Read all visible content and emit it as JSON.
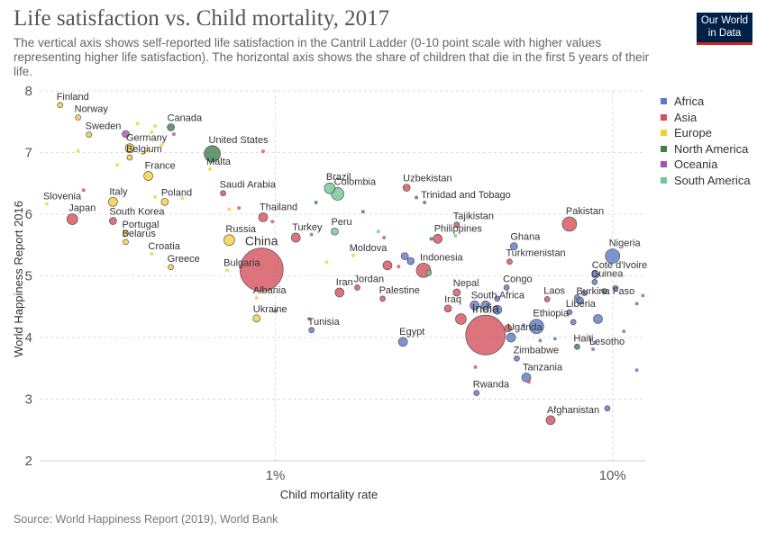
{
  "title": "Life satisfaction vs. Child mortality, 2017",
  "subtitle": "The vertical axis shows self-reported life satisfaction in the Cantril Ladder (0-10 point scale with higher values representing higher life satisfaction). The horizontal axis shows the share of children that die in the first 5 years of their life.",
  "logo": {
    "line1": "Our World",
    "line2": "in Data"
  },
  "source": "Source: World Happiness Report (2019), World Bank",
  "colors": {
    "Africa": "#5b7bc6",
    "Asia": "#d4505b",
    "Europe": "#f2cf3a",
    "North America": "#3f7f4c",
    "Oceania": "#a651b6",
    "South America": "#6fc98f",
    "grid": "#dddddd",
    "text": "#333333"
  },
  "legend": [
    "Africa",
    "Asia",
    "Europe",
    "North America",
    "Oceania",
    "South America"
  ],
  "chart_data": {
    "type": "scatter",
    "xlabel": "Child mortality rate",
    "ylabel": "World Happiness Report 2016",
    "x_scale": "log",
    "xlim": [
      0.2,
      12.5
    ],
    "ylim": [
      2,
      8
    ],
    "x_ticks": [
      {
        "value": 1,
        "label": "1%"
      },
      {
        "value": 10,
        "label": "10%"
      }
    ],
    "y_ticks": [
      2,
      3,
      4,
      5,
      6,
      7,
      8
    ],
    "grid": true,
    "legend_position": "right",
    "points": [
      {
        "label": "Finland",
        "x": 0.23,
        "y": 7.77,
        "region": "Europe",
        "size": 3
      },
      {
        "label": "Norway",
        "x": 0.26,
        "y": 7.57,
        "region": "Europe",
        "size": 3
      },
      {
        "label": "Sweden",
        "x": 0.28,
        "y": 7.29,
        "region": "Europe",
        "size": 3
      },
      {
        "label": "Germany",
        "x": 0.37,
        "y": 7.07,
        "region": "Europe",
        "size": 5
      },
      {
        "label": "Belgium",
        "x": 0.37,
        "y": 6.92,
        "region": "Europe",
        "size": 3
      },
      {
        "label": "Canada",
        "x": 0.49,
        "y": 7.41,
        "region": "North America",
        "size": 4
      },
      {
        "label": "United States",
        "x": 0.65,
        "y": 6.98,
        "region": "North America",
        "size": 9
      },
      {
        "label": "France",
        "x": 0.42,
        "y": 6.62,
        "region": "Europe",
        "size": 5
      },
      {
        "label": "Malta",
        "x": 0.64,
        "y": 6.73,
        "region": "Europe",
        "size": 2
      },
      {
        "label": "Slovenia",
        "x": 0.21,
        "y": 6.17,
        "region": "Europe",
        "size": 2
      },
      {
        "label": "Italy",
        "x": 0.33,
        "y": 6.2,
        "region": "Europe",
        "size": 5
      },
      {
        "label": "Poland",
        "x": 0.47,
        "y": 6.2,
        "region": "Europe",
        "size": 4
      },
      {
        "label": "Saudi Arabia",
        "x": 0.7,
        "y": 6.34,
        "region": "Asia",
        "size": 3
      },
      {
        "label": "Japan",
        "x": 0.25,
        "y": 5.92,
        "region": "Asia",
        "size": 6
      },
      {
        "label": "South Korea",
        "x": 0.33,
        "y": 5.89,
        "region": "Asia",
        "size": 4
      },
      {
        "label": "Portugal",
        "x": 0.36,
        "y": 5.69,
        "region": "Europe",
        "size": 3
      },
      {
        "label": "Belarus",
        "x": 0.36,
        "y": 5.55,
        "region": "Europe",
        "size": 3
      },
      {
        "label": "Russia",
        "x": 0.73,
        "y": 5.58,
        "region": "Europe",
        "size": 6
      },
      {
        "label": "Croatia",
        "x": 0.43,
        "y": 5.36,
        "region": "Europe",
        "size": 2
      },
      {
        "label": "Greece",
        "x": 0.49,
        "y": 5.14,
        "region": "Europe",
        "size": 3
      },
      {
        "label": "Bulgaria",
        "x": 0.72,
        "y": 5.09,
        "region": "Europe",
        "size": 2
      },
      {
        "label": "China",
        "x": 0.91,
        "y": 5.1,
        "region": "Asia",
        "size": 24
      },
      {
        "label": "Thailand",
        "x": 0.92,
        "y": 5.95,
        "region": "Asia",
        "size": 5
      },
      {
        "label": "Albania",
        "x": 0.88,
        "y": 4.64,
        "region": "Europe",
        "size": 2
      },
      {
        "label": "Ukraine",
        "x": 0.88,
        "y": 4.31,
        "region": "Europe",
        "size": 4
      },
      {
        "label": "Tunisia",
        "x": 1.28,
        "y": 4.12,
        "region": "Africa",
        "size": 3
      },
      {
        "label": "Turkey",
        "x": 1.15,
        "y": 5.62,
        "region": "Asia",
        "size": 5
      },
      {
        "label": "Brazil",
        "x": 1.45,
        "y": 6.42,
        "region": "South America",
        "size": 6
      },
      {
        "label": "Colombia",
        "x": 1.53,
        "y": 6.33,
        "region": "South America",
        "size": 7
      },
      {
        "label": "Peru",
        "x": 1.5,
        "y": 5.72,
        "region": "South America",
        "size": 4
      },
      {
        "label": "Moldova",
        "x": 1.7,
        "y": 5.33,
        "region": "Europe",
        "size": 2
      },
      {
        "label": "Iran",
        "x": 1.55,
        "y": 4.73,
        "region": "Asia",
        "size": 5
      },
      {
        "label": "Jordan",
        "x": 1.75,
        "y": 4.81,
        "region": "Asia",
        "size": 3
      },
      {
        "label": "Palestine",
        "x": 2.08,
        "y": 4.63,
        "region": "Asia",
        "size": 3
      },
      {
        "label": "Egypt",
        "x": 2.39,
        "y": 3.93,
        "region": "Africa",
        "size": 5
      },
      {
        "label": "Uzbekistan",
        "x": 2.45,
        "y": 6.43,
        "region": "Asia",
        "size": 4
      },
      {
        "label": "Trinidad and Tobago",
        "x": 2.77,
        "y": 6.19,
        "region": "North America",
        "size": 2
      },
      {
        "label": "Philippines",
        "x": 3.03,
        "y": 5.6,
        "region": "Asia",
        "size": 5
      },
      {
        "label": "Tajikistan",
        "x": 3.45,
        "y": 5.83,
        "region": "Asia",
        "size": 3
      },
      {
        "label": "Indonesia",
        "x": 2.75,
        "y": 5.09,
        "region": "Asia",
        "size": 8
      },
      {
        "label": "Nepal",
        "x": 3.45,
        "y": 4.73,
        "region": "Asia",
        "size": 4
      },
      {
        "label": "Iraq",
        "x": 3.25,
        "y": 4.47,
        "region": "Asia",
        "size": 4
      },
      {
        "label": "South Africa",
        "x": 3.9,
        "y": 4.52,
        "region": "Africa",
        "size": 5
      },
      {
        "label": "India",
        "x": 4.2,
        "y": 4.04,
        "region": "Asia",
        "size": 22
      },
      {
        "label": "Ghana",
        "x": 5.1,
        "y": 5.48,
        "region": "Africa",
        "size": 4
      },
      {
        "label": "Turkmenistan",
        "x": 4.95,
        "y": 5.23,
        "region": "Asia",
        "size": 3
      },
      {
        "label": "Congo",
        "x": 4.85,
        "y": 4.81,
        "region": "Africa",
        "size": 3
      },
      {
        "label": "Rwanda",
        "x": 3.95,
        "y": 3.1,
        "region": "Africa",
        "size": 3
      },
      {
        "label": "Uganda",
        "x": 5.0,
        "y": 4.0,
        "region": "Africa",
        "size": 5
      },
      {
        "label": "Ethiopia",
        "x": 5.95,
        "y": 4.18,
        "region": "Africa",
        "size": 8
      },
      {
        "label": "Zimbabwe",
        "x": 5.2,
        "y": 3.66,
        "region": "Africa",
        "size": 3
      },
      {
        "label": "Tanzania",
        "x": 5.55,
        "y": 3.35,
        "region": "Africa",
        "size": 5
      },
      {
        "label": "Laos",
        "x": 6.4,
        "y": 4.62,
        "region": "Asia",
        "size": 3
      },
      {
        "label": "Pakistan",
        "x": 7.45,
        "y": 5.84,
        "region": "Asia",
        "size": 8
      },
      {
        "label": "Cote d'Ivoire",
        "x": 8.9,
        "y": 5.02,
        "region": "Africa",
        "size": 4
      },
      {
        "label": "Guinea",
        "x": 8.85,
        "y": 4.9,
        "region": "Africa",
        "size": 3
      },
      {
        "label": "Burkina Faso",
        "x": 8.0,
        "y": 4.6,
        "region": "Africa",
        "size": 4
      },
      {
        "label": "Liberia",
        "x": 7.45,
        "y": 4.41,
        "region": "Africa",
        "size": 3
      },
      {
        "label": "Haiti",
        "x": 7.85,
        "y": 3.85,
        "region": "North America",
        "size": 3
      },
      {
        "label": "Lesotho",
        "x": 8.75,
        "y": 3.81,
        "region": "Africa",
        "size": 2
      },
      {
        "label": "Nigeria",
        "x": 10.0,
        "y": 5.32,
        "region": "Africa",
        "size": 8
      },
      {
        "label": "Afghanistan",
        "x": 6.55,
        "y": 2.66,
        "region": "Asia",
        "size": 5
      },
      {
        "label": "",
        "x": 0.44,
        "y": 7.43,
        "region": "Europe",
        "size": 2
      },
      {
        "label": "",
        "x": 0.39,
        "y": 7.47,
        "region": "Europe",
        "size": 2
      },
      {
        "label": "",
        "x": 0.43,
        "y": 7.33,
        "region": "Europe",
        "size": 2
      },
      {
        "label": "",
        "x": 0.36,
        "y": 7.3,
        "region": "Oceania",
        "size": 4
      },
      {
        "label": "",
        "x": 0.5,
        "y": 7.3,
        "region": "Oceania",
        "size": 2
      },
      {
        "label": "",
        "x": 0.46,
        "y": 7.12,
        "region": "Europe",
        "size": 2
      },
      {
        "label": "",
        "x": 0.42,
        "y": 7.05,
        "region": "Europe",
        "size": 2
      },
      {
        "label": "",
        "x": 0.41,
        "y": 7.01,
        "region": "Europe",
        "size": 2
      },
      {
        "label": "",
        "x": 0.26,
        "y": 7.03,
        "region": "Europe",
        "size": 2
      },
      {
        "label": "",
        "x": 0.34,
        "y": 6.8,
        "region": "Europe",
        "size": 2
      },
      {
        "label": "",
        "x": 0.92,
        "y": 7.02,
        "region": "Asia",
        "size": 2
      },
      {
        "label": "",
        "x": 0.27,
        "y": 6.39,
        "region": "Asia",
        "size": 2
      },
      {
        "label": "",
        "x": 0.44,
        "y": 6.28,
        "region": "Europe",
        "size": 2
      },
      {
        "label": "",
        "x": 0.53,
        "y": 6.26,
        "region": "Europe",
        "size": 2
      },
      {
        "label": "",
        "x": 0.73,
        "y": 6.08,
        "region": "Europe",
        "size": 2
      },
      {
        "label": "",
        "x": 0.78,
        "y": 6.1,
        "region": "Asia",
        "size": 2
      },
      {
        "label": "",
        "x": 0.98,
        "y": 5.88,
        "region": "Asia",
        "size": 2
      },
      {
        "label": "",
        "x": 1.32,
        "y": 6.19,
        "region": "North America",
        "size": 2
      },
      {
        "label": "",
        "x": 1.82,
        "y": 6.04,
        "region": "North America",
        "size": 2
      },
      {
        "label": "",
        "x": 1.28,
        "y": 5.67,
        "region": "Africa",
        "size": 2
      },
      {
        "label": "",
        "x": 1.42,
        "y": 5.22,
        "region": "Europe",
        "size": 2
      },
      {
        "label": "",
        "x": 2.15,
        "y": 5.17,
        "region": "Asia",
        "size": 5
      },
      {
        "label": "",
        "x": 2.32,
        "y": 5.15,
        "region": "Asia",
        "size": 2
      },
      {
        "label": "",
        "x": 2.42,
        "y": 5.32,
        "region": "Africa",
        "size": 4
      },
      {
        "label": "",
        "x": 2.52,
        "y": 5.24,
        "region": "Africa",
        "size": 4
      },
      {
        "label": "",
        "x": 2.85,
        "y": 5.05,
        "region": "South America",
        "size": 3
      },
      {
        "label": "",
        "x": 2.02,
        "y": 5.72,
        "region": "South America",
        "size": 2
      },
      {
        "label": "",
        "x": 2.62,
        "y": 6.27,
        "region": "North America",
        "size": 2
      },
      {
        "label": "",
        "x": 2.9,
        "y": 5.6,
        "region": "North America",
        "size": 2
      },
      {
        "label": "",
        "x": 3.42,
        "y": 5.65,
        "region": "South America",
        "size": 2
      },
      {
        "label": "",
        "x": 2.1,
        "y": 5.62,
        "region": "Asia",
        "size": 2
      },
      {
        "label": "",
        "x": 1.0,
        "y": 4.43,
        "region": "Asia",
        "size": 2
      },
      {
        "label": "",
        "x": 1.26,
        "y": 4.3,
        "region": "Asia",
        "size": 2
      },
      {
        "label": "",
        "x": 3.55,
        "y": 4.3,
        "region": "Asia",
        "size": 6
      },
      {
        "label": "",
        "x": 4.2,
        "y": 4.52,
        "region": "Africa",
        "size": 5
      },
      {
        "label": "",
        "x": 4.55,
        "y": 4.45,
        "region": "Africa",
        "size": 5
      },
      {
        "label": "",
        "x": 4.55,
        "y": 4.63,
        "region": "Africa",
        "size": 3
      },
      {
        "label": "",
        "x": 4.9,
        "y": 4.15,
        "region": "Asia",
        "size": 4
      },
      {
        "label": "",
        "x": 5.45,
        "y": 4.2,
        "region": "Africa",
        "size": 2
      },
      {
        "label": "",
        "x": 6.1,
        "y": 3.95,
        "region": "Africa",
        "size": 2
      },
      {
        "label": "",
        "x": 6.75,
        "y": 3.98,
        "region": "Africa",
        "size": 2
      },
      {
        "label": "",
        "x": 5.65,
        "y": 3.28,
        "region": "Asia",
        "size": 2
      },
      {
        "label": "",
        "x": 3.92,
        "y": 3.52,
        "region": "Oceania",
        "size": 2
      },
      {
        "label": "",
        "x": 7.65,
        "y": 4.25,
        "region": "Africa",
        "size": 3
      },
      {
        "label": "",
        "x": 7.85,
        "y": 4.65,
        "region": "Africa",
        "size": 3
      },
      {
        "label": "",
        "x": 8.25,
        "y": 4.72,
        "region": "Africa",
        "size": 3
      },
      {
        "label": "",
        "x": 9.05,
        "y": 4.3,
        "region": "Africa",
        "size": 5
      },
      {
        "label": "",
        "x": 9.45,
        "y": 4.75,
        "region": "Africa",
        "size": 3
      },
      {
        "label": "",
        "x": 10.2,
        "y": 4.8,
        "region": "Africa",
        "size": 3
      },
      {
        "label": "",
        "x": 10.8,
        "y": 4.1,
        "region": "Africa",
        "size": 2
      },
      {
        "label": "",
        "x": 11.8,
        "y": 4.55,
        "region": "Africa",
        "size": 2
      },
      {
        "label": "",
        "x": 12.3,
        "y": 4.68,
        "region": "Africa",
        "size": 2
      },
      {
        "label": "",
        "x": 11.8,
        "y": 3.47,
        "region": "Africa",
        "size": 2
      },
      {
        "label": "",
        "x": 9.65,
        "y": 2.85,
        "region": "Africa",
        "size": 3
      },
      {
        "label": "",
        "x": 8.85,
        "y": 3.92,
        "region": "Africa",
        "size": 2
      }
    ]
  }
}
